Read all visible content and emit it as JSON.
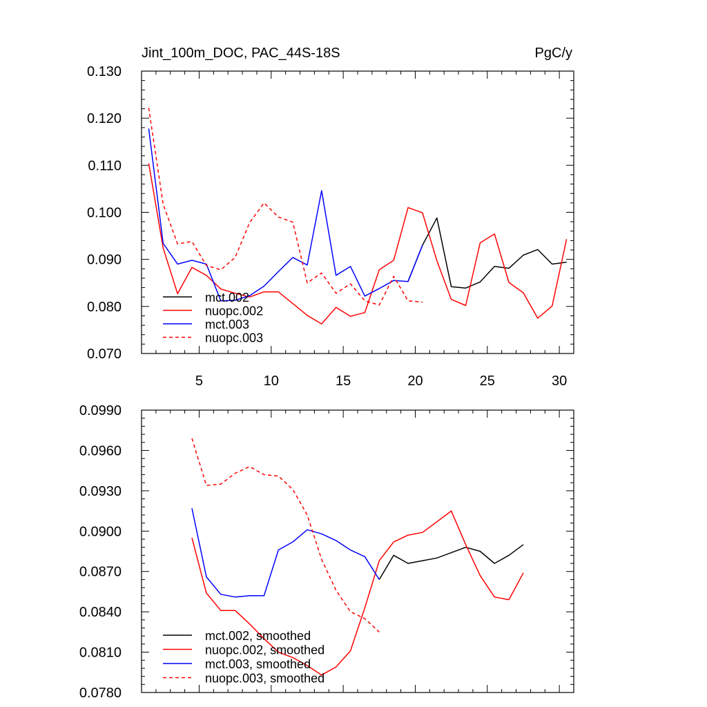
{
  "chart_data": [
    {
      "type": "line",
      "title_left": "Jint_100m_DOC, PAC_44S-18S",
      "title_right": "PgC/y",
      "xlabel": "",
      "ylabel": "",
      "xlim": [
        1,
        31
      ],
      "ylim": [
        0.07,
        0.13
      ],
      "xticks": [
        5,
        10,
        15,
        20,
        25,
        30
      ],
      "yticks": [
        0.07,
        0.08,
        0.09,
        0.1,
        0.11,
        0.12,
        0.13
      ],
      "ytick_labels": [
        "0.070",
        "0.080",
        "0.090",
        "0.100",
        "0.110",
        "0.120",
        "0.130"
      ],
      "show_xtick_labels": true,
      "grid": false,
      "legend_position": "bottom-left",
      "series": [
        {
          "name": "mct.002",
          "color": "#000000",
          "dash": "solid",
          "x": [
            19.5,
            20.5,
            21.5,
            22.5,
            23.5,
            24.5,
            25.5,
            26.5,
            27.5,
            28.5,
            29.5,
            30.5
          ],
          "y": [
            0.0853,
            0.093,
            0.0988,
            0.0842,
            0.0839,
            0.0852,
            0.0885,
            0.0881,
            0.0909,
            0.0921,
            0.089,
            0.0894
          ]
        },
        {
          "name": "nuopc.002",
          "color": "#ff0000",
          "dash": "solid",
          "x": [
            1.5,
            2.5,
            3.5,
            4.5,
            5.5,
            6.5,
            7.5,
            8.5,
            9.5,
            10.5,
            11.5,
            12.5,
            13.5,
            14.5,
            15.5,
            16.5,
            17.5,
            18.5,
            19.5,
            20.5,
            21.5,
            22.5,
            23.5,
            24.5,
            25.5,
            26.5,
            27.5,
            28.5,
            29.5,
            30.5
          ],
          "y": [
            0.1104,
            0.0924,
            0.0827,
            0.0883,
            0.0866,
            0.0837,
            0.0828,
            0.082,
            0.0831,
            0.0831,
            0.0806,
            0.0781,
            0.0763,
            0.0798,
            0.0779,
            0.0787,
            0.0878,
            0.0898,
            0.101,
            0.0999,
            0.0897,
            0.0815,
            0.0802,
            0.0935,
            0.0954,
            0.0851,
            0.0829,
            0.0775,
            0.0801,
            0.0943
          ]
        },
        {
          "name": "mct.003",
          "color": "#0000ff",
          "dash": "solid",
          "x": [
            1.5,
            2.5,
            3.5,
            4.5,
            5.5,
            6.5,
            7.5,
            8.5,
            9.5,
            10.5,
            11.5,
            12.5,
            13.5,
            14.5,
            15.5,
            16.5,
            17.5,
            18.5,
            19.5,
            20.5
          ],
          "y": [
            0.1178,
            0.0934,
            0.089,
            0.0898,
            0.089,
            0.0812,
            0.0813,
            0.0823,
            0.0843,
            0.0874,
            0.0904,
            0.0888,
            0.1046,
            0.0866,
            0.0885,
            0.0822,
            0.0838,
            0.0855,
            0.0853,
            0.093
          ]
        },
        {
          "name": "nuopc.003",
          "color": "#ff0000",
          "dash": "dashed",
          "x": [
            1.5,
            2.5,
            3.5,
            4.5,
            5.5,
            6.5,
            7.5,
            8.5,
            9.5,
            10.5,
            11.5,
            12.5,
            13.5,
            14.5,
            15.5,
            16.5,
            17.5,
            18.5,
            19.5,
            20.5
          ],
          "y": [
            0.1222,
            0.1017,
            0.0933,
            0.0938,
            0.0887,
            0.0878,
            0.0904,
            0.0978,
            0.102,
            0.099,
            0.0979,
            0.085,
            0.0871,
            0.0828,
            0.0848,
            0.0812,
            0.0803,
            0.0864,
            0.0812,
            0.0809
          ]
        }
      ]
    },
    {
      "type": "line",
      "title_left": "",
      "title_right": "",
      "xlabel": "",
      "ylabel": "",
      "xlim": [
        1,
        31
      ],
      "ylim": [
        0.078,
        0.099
      ],
      "xticks": [
        5,
        10,
        15,
        20,
        25,
        30
      ],
      "yticks": [
        0.078,
        0.081,
        0.084,
        0.087,
        0.09,
        0.093,
        0.096,
        0.099
      ],
      "ytick_labels": [
        "0.0780",
        "0.0810",
        "0.0840",
        "0.0870",
        "0.0900",
        "0.0930",
        "0.0960",
        "0.0990"
      ],
      "show_xtick_labels": false,
      "grid": false,
      "legend_position": "bottom-left",
      "series": [
        {
          "name": "mct.002, smoothed",
          "color": "#000000",
          "dash": "solid",
          "x": [
            17.5,
            18.5,
            19.5,
            20.5,
            21.5,
            22.5,
            23.5,
            24.5,
            25.5,
            26.5,
            27.5
          ],
          "y": [
            0.0864,
            0.0882,
            0.0876,
            0.0878,
            0.088,
            0.0884,
            0.0888,
            0.0885,
            0.0876,
            0.0882,
            0.089
          ]
        },
        {
          "name": "nuopc.002, smoothed",
          "color": "#ff0000",
          "dash": "solid",
          "x": [
            4.5,
            5.5,
            6.5,
            7.5,
            8.5,
            9.5,
            10.5,
            11.5,
            12.5,
            13.5,
            14.5,
            15.5,
            16.5,
            17.5,
            18.5,
            19.5,
            20.5,
            21.5,
            22.5,
            23.5,
            24.5,
            25.5,
            26.5,
            27.5
          ],
          "y": [
            0.0895,
            0.0854,
            0.0841,
            0.0841,
            0.0831,
            0.082,
            0.081,
            0.0806,
            0.08,
            0.0793,
            0.0799,
            0.0811,
            0.0843,
            0.0878,
            0.0892,
            0.0897,
            0.0899,
            0.0907,
            0.0915,
            0.089,
            0.0867,
            0.0851,
            0.0849,
            0.0869
          ]
        },
        {
          "name": "mct.003, smoothed",
          "color": "#0000ff",
          "dash": "solid",
          "x": [
            4.5,
            5.5,
            6.5,
            7.5,
            8.5,
            9.5,
            10.5,
            11.5,
            12.5,
            13.5,
            14.5,
            15.5,
            16.5,
            17.5
          ],
          "y": [
            0.0917,
            0.0866,
            0.0853,
            0.0851,
            0.0852,
            0.0852,
            0.0886,
            0.0892,
            0.0901,
            0.0898,
            0.0893,
            0.0886,
            0.0881,
            0.0864
          ]
        },
        {
          "name": "nuopc.003, smoothed",
          "color": "#ff0000",
          "dash": "dashed",
          "x": [
            4.5,
            5.5,
            6.5,
            7.5,
            8.5,
            9.5,
            10.5,
            11.5,
            12.5,
            13.5,
            14.5,
            15.5,
            16.5,
            17.5
          ],
          "y": [
            0.0969,
            0.0934,
            0.0935,
            0.0943,
            0.0948,
            0.0942,
            0.0941,
            0.0931,
            0.0912,
            0.0879,
            0.0856,
            0.084,
            0.0835,
            0.0825
          ]
        }
      ]
    }
  ]
}
